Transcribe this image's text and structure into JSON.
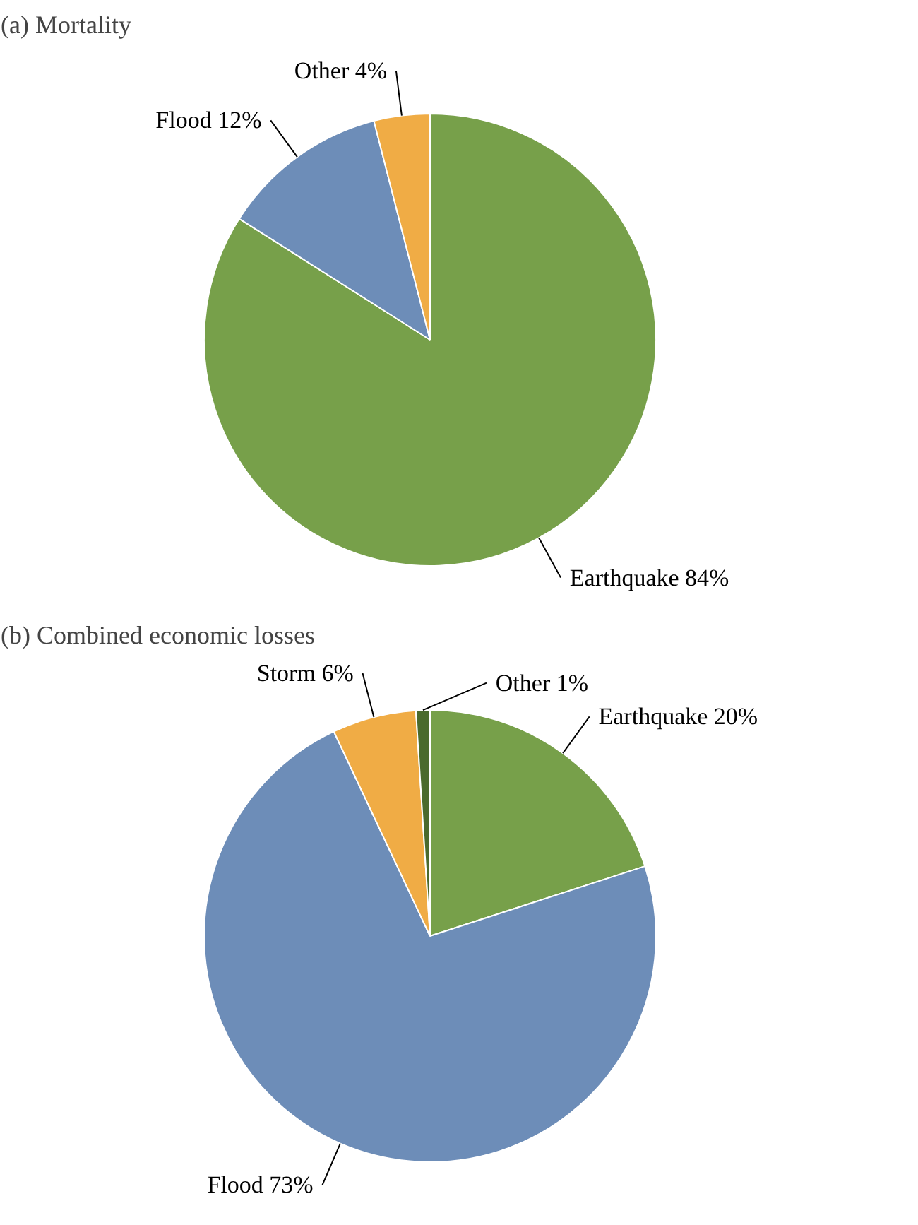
{
  "chart_data": [
    {
      "type": "pie",
      "title": "(a) Mortality",
      "categories": [
        "Earthquake",
        "Flood",
        "Other"
      ],
      "values": [
        84,
        12,
        4
      ],
      "value_labels": [
        "84%",
        "12%",
        "4%"
      ],
      "colors": [
        "#77a04a",
        "#6d8db8",
        "#f0ac45"
      ]
    },
    {
      "type": "pie",
      "title": "(b) Combined economic losses",
      "categories": [
        "Earthquake",
        "Flood",
        "Storm",
        "Other"
      ],
      "values": [
        20,
        73,
        6,
        1
      ],
      "value_labels": [
        "20%",
        "73%",
        "6%",
        "1%"
      ],
      "colors": [
        "#77a04a",
        "#6d8db8",
        "#f0ac45",
        "#4a6a2d"
      ]
    }
  ]
}
